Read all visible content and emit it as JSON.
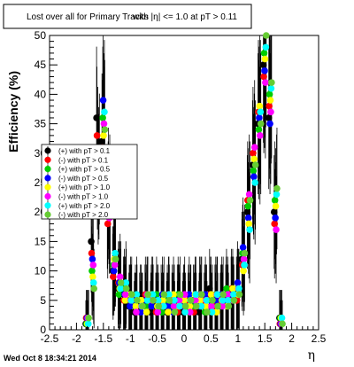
{
  "title_prefix": "Lost over all for Primary Tracks",
  "title_overlap": "with |η| <= 1.0 at pT > 0.11",
  "timestamp": "Wed Oct  8 18:34:21 2014",
  "chart_data": {
    "type": "scatter",
    "title": "Lost over all for Primary Tracks with |η| <= 1.0 at pT > 0.11",
    "xlabel": "η",
    "ylabel": "Efficiency (%)",
    "xlim": [
      -2.5,
      2.5
    ],
    "ylim": [
      0,
      50
    ],
    "xticks": [
      -2.5,
      -2,
      -1.5,
      -1,
      -0.5,
      0,
      0.5,
      1,
      1.5,
      2,
      2.5
    ],
    "yticks": [
      0,
      5,
      10,
      15,
      20,
      25,
      30,
      35,
      40,
      45,
      50
    ],
    "grid": false,
    "legend_position": "left-middle",
    "series": [
      {
        "name": "(+) with pT > 0.1",
        "color": "#000000",
        "x": [
          -1.8,
          -1.7,
          -1.6,
          -1.5,
          -1.4,
          -1.3,
          -1.2,
          -1.1,
          -1,
          -0.9,
          -0.8,
          -0.7,
          -0.6,
          -0.5,
          -0.4,
          -0.3,
          -0.2,
          -0.1,
          0,
          0.1,
          0.2,
          0.3,
          0.4,
          0.5,
          0.6,
          0.7,
          0.8,
          0.9,
          1,
          1.1,
          1.2,
          1.3,
          1.4,
          1.5,
          1.6,
          1.7,
          1.8
        ],
        "y": [
          1,
          15,
          36,
          32,
          20,
          10,
          7,
          6,
          4,
          3,
          4,
          5,
          3,
          4,
          5,
          3,
          4,
          5,
          3,
          4,
          5,
          3,
          4,
          7,
          5,
          4,
          5,
          6,
          6,
          12,
          20,
          28,
          35,
          45,
          36,
          20,
          2
        ]
      },
      {
        "name": "(-) with pT > 0.1",
        "color": "#ff0000",
        "x": [
          -1.8,
          -1.7,
          -1.6,
          -1.5,
          -1.4,
          -1.3,
          -1.2,
          -1.1,
          -1,
          -0.9,
          -0.8,
          -0.7,
          -0.6,
          -0.5,
          -0.4,
          -0.3,
          -0.2,
          -0.1,
          0,
          0.1,
          0.2,
          0.3,
          0.4,
          0.5,
          0.6,
          0.7,
          0.8,
          0.9,
          1,
          1.1,
          1.2,
          1.3,
          1.4,
          1.5,
          1.6,
          1.7,
          1.8
        ],
        "y": [
          2,
          13,
          33,
          31,
          18,
          9,
          8,
          5,
          5,
          4,
          3,
          6,
          4,
          3,
          4,
          4,
          5,
          3,
          4,
          5,
          3,
          4,
          5,
          6,
          4,
          5,
          6,
          7,
          5,
          11,
          22,
          30,
          37,
          43,
          38,
          18,
          1
        ]
      },
      {
        "name": "(+) with pT > 0.5",
        "color": "#00cc00",
        "x": [
          -1.8,
          -1.7,
          -1.6,
          -1.5,
          -1.4,
          -1.3,
          -1.2,
          -1.1,
          -1,
          -0.9,
          -0.8,
          -0.7,
          -0.6,
          -0.5,
          -0.4,
          -0.3,
          -0.2,
          -0.1,
          0,
          0.1,
          0.2,
          0.3,
          0.4,
          0.5,
          0.6,
          0.7,
          0.8,
          0.9,
          1,
          1.1,
          1.2,
          1.3,
          1.4,
          1.5,
          1.6,
          1.7,
          1.8
        ],
        "y": [
          1,
          10,
          28,
          36,
          22,
          11,
          6,
          7,
          5,
          4,
          5,
          4,
          5,
          6,
          3,
          5,
          4,
          6,
          5,
          3,
          4,
          6,
          3,
          5,
          6,
          4,
          7,
          5,
          7,
          13,
          21,
          27,
          34,
          47,
          40,
          22,
          2
        ]
      },
      {
        "name": "(-) with pT > 0.5",
        "color": "#0000ff",
        "x": [
          -1.8,
          -1.7,
          -1.6,
          -1.5,
          -1.4,
          -1.3,
          -1.2,
          -1.1,
          -1,
          -0.9,
          -0.8,
          -0.7,
          -0.6,
          -0.5,
          -0.4,
          -0.3,
          -0.2,
          -0.1,
          0,
          0.1,
          0.2,
          0.3,
          0.4,
          0.5,
          0.6,
          0.7,
          0.8,
          0.9,
          1,
          1.1,
          1.2,
          1.3,
          1.4,
          1.5,
          1.6,
          1.7,
          1.8
        ],
        "y": [
          2,
          12,
          30,
          39,
          24,
          10,
          8,
          6,
          4,
          5,
          3,
          5,
          4,
          5,
          6,
          4,
          3,
          5,
          4,
          6,
          5,
          4,
          6,
          4,
          5,
          6,
          5,
          6,
          8,
          14,
          19,
          26,
          36,
          44,
          35,
          19,
          1
        ]
      },
      {
        "name": "(+) with pT > 1.0",
        "color": "#ffff00",
        "x": [
          -1.8,
          -1.7,
          -1.6,
          -1.5,
          -1.4,
          -1.3,
          -1.2,
          -1.1,
          -1,
          -0.9,
          -0.8,
          -0.7,
          -0.6,
          -0.5,
          -0.4,
          -0.3,
          -0.2,
          -0.1,
          0,
          0.1,
          0.2,
          0.3,
          0.4,
          0.5,
          0.6,
          0.7,
          0.8,
          0.9,
          1,
          1.1,
          1.2,
          1.3,
          1.4,
          1.5,
          1.6,
          1.7,
          1.8
        ],
        "y": [
          1,
          9,
          25,
          33,
          21,
          12,
          7,
          5,
          6,
          4,
          5,
          3,
          6,
          4,
          5,
          3,
          6,
          4,
          5,
          4,
          6,
          5,
          4,
          6,
          3,
          5,
          4,
          7,
          6,
          10,
          18,
          29,
          38,
          46,
          39,
          21,
          2
        ]
      },
      {
        "name": "(-) with pT > 1.0",
        "color": "#ff00ff",
        "x": [
          -1.8,
          -1.7,
          -1.6,
          -1.5,
          -1.4,
          -1.3,
          -1.2,
          -1.1,
          -1,
          -0.9,
          -0.8,
          -0.7,
          -0.6,
          -0.5,
          -0.4,
          -0.3,
          -0.2,
          -0.1,
          0,
          0.1,
          0.2,
          0.3,
          0.4,
          0.5,
          0.6,
          0.7,
          0.8,
          0.9,
          1,
          1.1,
          1.2,
          1.3,
          1.4,
          1.5,
          1.6,
          1.7,
          1.8
        ],
        "y": [
          2,
          11,
          27,
          35,
          19,
          11,
          9,
          6,
          5,
          3,
          4,
          6,
          5,
          3,
          4,
          6,
          4,
          5,
          6,
          3,
          5,
          6,
          5,
          4,
          6,
          4,
          6,
          5,
          7,
          12,
          23,
          31,
          33,
          42,
          37,
          17,
          1
        ]
      },
      {
        "name": "(+) with pT > 2.0",
        "color": "#00ffff",
        "x": [
          -1.8,
          -1.7,
          -1.6,
          -1.5,
          -1.4,
          -1.3,
          -1.2,
          -1.1,
          -1,
          -0.9,
          -0.8,
          -0.7,
          -0.6,
          -0.5,
          -0.4,
          -0.3,
          -0.2,
          -0.1,
          0,
          0.1,
          0.2,
          0.3,
          0.4,
          0.5,
          0.6,
          0.7,
          0.8,
          0.9,
          1,
          1.1,
          1.2,
          1.3,
          1.4,
          1.5,
          1.6,
          1.7,
          1.8
        ],
        "y": [
          1,
          8,
          26,
          37,
          23,
          13,
          7,
          8,
          5,
          6,
          4,
          5,
          6,
          5,
          4,
          6,
          5,
          4,
          3,
          5,
          6,
          4,
          5,
          3,
          6,
          5,
          5,
          6,
          7,
          11,
          17,
          25,
          37,
          48,
          41,
          23,
          2
        ]
      },
      {
        "name": "(-) with pT > 2.0",
        "color": "#66cc33",
        "x": [
          -1.8,
          -1.7,
          -1.6,
          -1.5,
          -1.4,
          -1.3,
          -1.2,
          -1.1,
          -1,
          -0.9,
          -0.8,
          -0.7,
          -0.6,
          -0.5,
          -0.4,
          -0.3,
          -0.2,
          -0.1,
          0,
          0.1,
          0.2,
          0.3,
          0.4,
          0.5,
          0.6,
          0.7,
          0.8,
          0.9,
          1,
          1.1,
          1.2,
          1.3,
          1.4,
          1.5,
          1.6,
          1.7,
          1.8
        ],
        "y": [
          2,
          7,
          29,
          34,
          20,
          12,
          8,
          7,
          6,
          5,
          4,
          6,
          5,
          4,
          6,
          5,
          3,
          6,
          4,
          5,
          4,
          6,
          3,
          5,
          4,
          6,
          4,
          5,
          6,
          13,
          22,
          28,
          35,
          50,
          42,
          24,
          1
        ]
      }
    ]
  }
}
